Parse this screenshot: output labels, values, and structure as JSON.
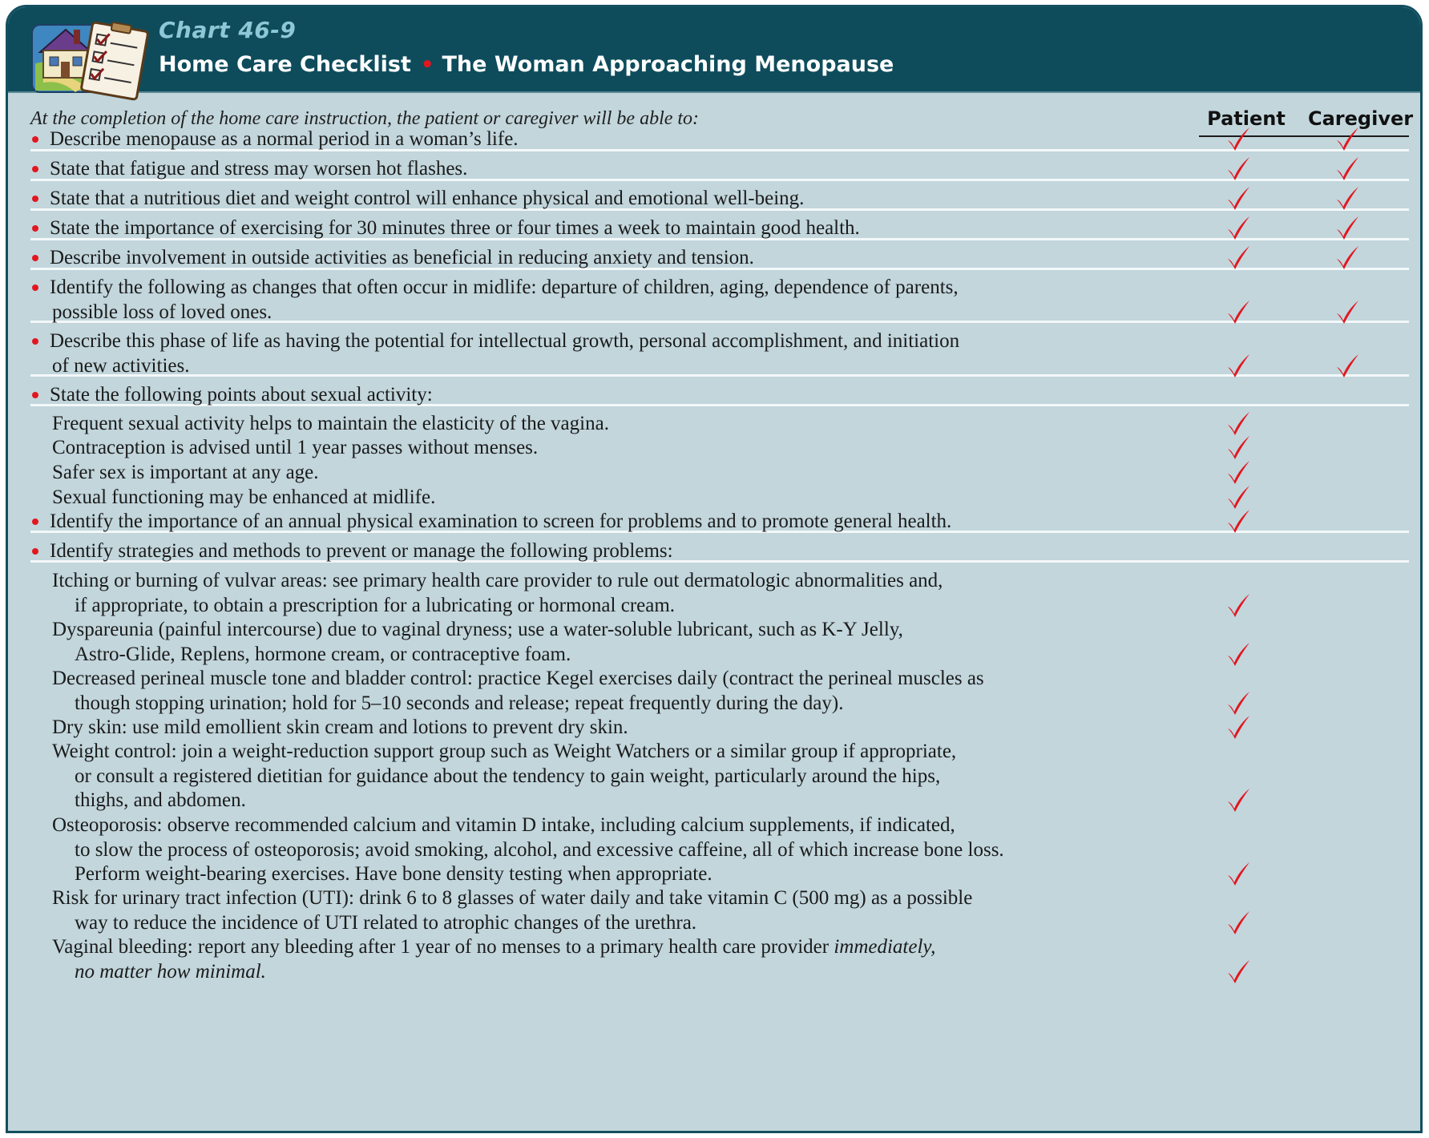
{
  "header": {
    "chart_label": "Chart 46-9",
    "checklist_label": "Home Care Checklist",
    "separator": "•",
    "title": "The Woman Approaching Menopause"
  },
  "intro": "At the completion of the home care instruction, the patient or caregiver will be able to:",
  "columns": {
    "patient": "Patient",
    "caregiver": "Caregiver"
  },
  "colors": {
    "header_bg": "#0e4c5c",
    "panel_bg": "#c2d6dc",
    "accent_red": "#e3161f",
    "chart_label": "#8ec7d6"
  },
  "icons": [
    "house-icon",
    "clipboard-icon",
    "check-icon"
  ],
  "items": [
    {
      "lines": [
        "Describe menopause as a normal period in a woman’s life."
      ],
      "patient": true,
      "caregiver": true
    },
    {
      "lines": [
        "State that fatigue and stress may worsen hot flashes."
      ],
      "patient": true,
      "caregiver": true
    },
    {
      "lines": [
        "State that a nutritious diet and weight control will enhance physical and emotional well-being."
      ],
      "patient": true,
      "caregiver": true
    },
    {
      "lines": [
        "State the importance of exercising for 30 minutes three or four times a week to maintain good health."
      ],
      "patient": true,
      "caregiver": true
    },
    {
      "lines": [
        "Describe involvement in outside activities as beneficial in reducing anxiety and tension."
      ],
      "patient": true,
      "caregiver": true
    },
    {
      "lines": [
        "Identify the following as changes that often occur in midlife: departure of children, aging, dependence of parents,",
        "possible loss of loved ones."
      ],
      "patient": true,
      "caregiver": true
    },
    {
      "lines": [
        "Describe this phase of life as having the potential for intellectual growth, personal accomplishment, and initiation",
        "of new activities."
      ],
      "patient": true,
      "caregiver": true
    },
    {
      "lines": [
        "State the following points about sexual activity:"
      ],
      "patient": false,
      "caregiver": false
    },
    {
      "lines": [
        "Frequent sexual activity helps to maintain the elasticity of the vagina."
      ],
      "patient": true,
      "caregiver": false
    },
    {
      "lines": [
        "Contraception is advised until 1 year passes without menses."
      ],
      "patient": true,
      "caregiver": false
    },
    {
      "lines": [
        "Safer sex is important at any age."
      ],
      "patient": true,
      "caregiver": false
    },
    {
      "lines": [
        "Sexual functioning may be enhanced at midlife."
      ],
      "patient": true,
      "caregiver": false
    },
    {
      "lines": [
        "Identify the importance of an annual physical examination to screen for problems and to promote general health."
      ],
      "patient": true,
      "caregiver": false
    },
    {
      "lines": [
        "Identify strategies and methods to prevent or manage the following problems:"
      ],
      "patient": false,
      "caregiver": false
    },
    {
      "lines": [
        "Itching or burning of vulvar areas: see primary health care provider to rule out dermatologic abnormalities and,",
        "if appropriate, to obtain a prescription for a lubricating or hormonal cream."
      ],
      "patient": true,
      "caregiver": false
    },
    {
      "lines": [
        "Dyspareunia (painful intercourse) due to vaginal dryness; use a water-soluble lubricant, such as K-Y Jelly,",
        "Astro-Glide, Replens, hormone cream, or contraceptive foam."
      ],
      "patient": true,
      "caregiver": false
    },
    {
      "lines": [
        "Decreased perineal muscle tone and bladder control: practice Kegel exercises daily (contract the perineal muscles as",
        "though stopping urination; hold for 5–10 seconds and release; repeat frequently during the day)."
      ],
      "patient": true,
      "caregiver": false
    },
    {
      "lines": [
        "Dry skin: use mild emollient skin cream and lotions to prevent dry skin."
      ],
      "patient": true,
      "caregiver": false
    },
    {
      "lines": [
        "Weight control: join a weight-reduction support group such as Weight Watchers or a similar group if appropriate,",
        "or consult a registered dietitian for guidance about the tendency to gain weight, particularly around the hips,",
        "thighs, and abdomen."
      ],
      "patient": true,
      "caregiver": false
    },
    {
      "lines": [
        "Osteoporosis: observe recommended calcium and vitamin D intake, including calcium supplements, if indicated,",
        "to slow the process of osteoporosis; avoid smoking, alcohol, and excessive caffeine, all of which increase bone loss.",
        "Perform weight-bearing exercises. Have bone density testing when appropriate."
      ],
      "patient": true,
      "caregiver": false
    },
    {
      "lines": [
        "Risk for urinary tract infection (UTI): drink 6 to 8 glasses of water daily and take vitamin C (500 mg) as a possible",
        "way to reduce the incidence of UTI related to atrophic changes of the urethra."
      ],
      "patient": true,
      "caregiver": false
    },
    {
      "lines": [
        "Vaginal bleeding: report any bleeding after 1 year of no menses to a primary health care provider",
        "no matter how minimal."
      ],
      "patient": true,
      "caregiver": false,
      "emphasis": {
        "line1_tail": "immediately,"
      }
    }
  ]
}
